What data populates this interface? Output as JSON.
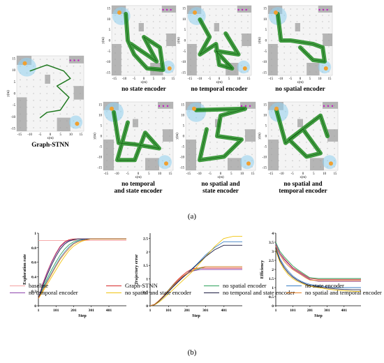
{
  "part_a": {
    "label": "(a)",
    "maps": [
      {
        "caption": [
          "Graph-STNN"
        ]
      },
      {
        "caption": [
          "no state encoder"
        ]
      },
      {
        "caption": [
          "no temporal encoder"
        ]
      },
      {
        "caption": [
          "no spatial encoder"
        ]
      },
      {
        "caption": [
          "no temporal",
          "and state encoder"
        ]
      },
      {
        "caption": [
          "no spatial and",
          "state encoder"
        ]
      },
      {
        "caption": [
          "no spatial and",
          "temporal encoder"
        ]
      }
    ],
    "x_label": "x(m)",
    "y_label": "y(m)",
    "ticks": [
      "-15",
      "-10",
      "-5",
      "0",
      "5",
      "10",
      "15"
    ],
    "y_ticks": [
      "15",
      "10",
      "5",
      "0",
      "-5",
      "-10",
      "-15"
    ]
  },
  "part_b": {
    "label": "(b)"
  },
  "colors": {
    "baseline": "#f4a0a0",
    "Graph-STNN": "#d62728",
    "no spatial encoder": "#2ca05a",
    "no state encoder": "#3a7fc4",
    "no temporal encoder": "#8e44ad",
    "no spatial and state encoder": "#f1c40f",
    "no temporal and state encoder": "#1a1a40",
    "no spatial and temporal encoder": "#e67e22",
    "map_green": "#1f8a1f",
    "map_blue": "#8fd0ee",
    "map_gray": "#9a9a9a",
    "map_orange": "#f0a030",
    "map_magenta": "#c020c0"
  },
  "chart_data": [
    {
      "type": "line",
      "ylabel": "Exploration rate",
      "xlabel": "Step",
      "x_ticks": [
        1,
        101,
        201,
        301,
        401
      ],
      "y_ticks": [
        0,
        0.2,
        0.4,
        0.6,
        0.8,
        1
      ],
      "xlim": [
        1,
        500
      ],
      "ylim": [
        0,
        1
      ],
      "x": [
        1,
        25,
        50,
        75,
        100,
        125,
        150,
        175,
        200,
        225,
        250,
        275,
        300,
        350,
        400,
        450,
        500
      ],
      "series": [
        {
          "name": "baseline",
          "values": [
            0.9,
            0.9,
            0.9,
            0.9,
            0.9,
            0.9,
            0.9,
            0.9,
            0.9,
            0.9,
            0.9,
            0.9,
            0.9,
            0.9,
            0.9,
            0.9,
            0.9
          ]
        },
        {
          "name": "Graph-STNN",
          "values": [
            0.1,
            0.3,
            0.46,
            0.6,
            0.72,
            0.82,
            0.88,
            0.91,
            0.92,
            0.92,
            0.92,
            0.92,
            0.92,
            0.92,
            0.92,
            0.92,
            0.92
          ]
        },
        {
          "name": "no spatial encoder",
          "values": [
            0.1,
            0.24,
            0.37,
            0.49,
            0.6,
            0.7,
            0.78,
            0.84,
            0.88,
            0.9,
            0.91,
            0.92,
            0.92,
            0.92,
            0.92,
            0.92,
            0.92
          ]
        },
        {
          "name": "no state encoder",
          "values": [
            0.1,
            0.22,
            0.34,
            0.45,
            0.56,
            0.66,
            0.74,
            0.81,
            0.86,
            0.89,
            0.91,
            0.92,
            0.92,
            0.92,
            0.92,
            0.92,
            0.92
          ]
        },
        {
          "name": "no temporal encoder",
          "values": [
            0.1,
            0.29,
            0.45,
            0.59,
            0.71,
            0.81,
            0.87,
            0.9,
            0.91,
            0.92,
            0.92,
            0.92,
            0.92,
            0.92,
            0.92,
            0.92,
            0.92
          ]
        },
        {
          "name": "no spatial and state encoder",
          "values": [
            0.1,
            0.19,
            0.29,
            0.39,
            0.49,
            0.59,
            0.68,
            0.76,
            0.82,
            0.86,
            0.89,
            0.91,
            0.92,
            0.92,
            0.92,
            0.92,
            0.92
          ]
        },
        {
          "name": "no temporal and state encoder",
          "values": [
            0.1,
            0.27,
            0.42,
            0.56,
            0.68,
            0.78,
            0.85,
            0.89,
            0.91,
            0.92,
            0.92,
            0.92,
            0.92,
            0.92,
            0.92,
            0.92,
            0.92
          ]
        },
        {
          "name": "no spatial and temporal encoder",
          "values": [
            0.1,
            0.21,
            0.32,
            0.43,
            0.54,
            0.64,
            0.72,
            0.79,
            0.85,
            0.88,
            0.9,
            0.91,
            0.92,
            0.92,
            0.92,
            0.92,
            0.92
          ]
        }
      ]
    },
    {
      "type": "line",
      "ylabel": "Trajectory error",
      "xlabel": "Step",
      "x_ticks": [
        1,
        101,
        201,
        301,
        401
      ],
      "y_ticks": [
        0,
        0.5,
        1,
        1.5,
        2,
        2.5
      ],
      "xlim": [
        1,
        500
      ],
      "ylim": [
        0,
        2.7
      ],
      "x": [
        1,
        25,
        50,
        75,
        100,
        125,
        150,
        175,
        200,
        225,
        250,
        275,
        300,
        350,
        400,
        450,
        500
      ],
      "series": [
        {
          "name": "Graph-STNN",
          "values": [
            0,
            0.05,
            0.2,
            0.38,
            0.58,
            0.78,
            0.96,
            1.12,
            1.26,
            1.36,
            1.4,
            1.4,
            1.4,
            1.4,
            1.4,
            1.4,
            1.4
          ]
        },
        {
          "name": "no spatial encoder",
          "values": [
            0,
            0.05,
            0.2,
            0.38,
            0.58,
            0.76,
            0.92,
            1.06,
            1.18,
            1.28,
            1.34,
            1.4,
            1.45,
            1.45,
            1.45,
            1.45,
            1.45
          ]
        },
        {
          "name": "no state encoder",
          "values": [
            0,
            0.04,
            0.18,
            0.34,
            0.52,
            0.7,
            0.88,
            1.04,
            1.2,
            1.36,
            1.52,
            1.7,
            1.88,
            2.16,
            2.38,
            2.38,
            2.38
          ]
        },
        {
          "name": "no temporal encoder",
          "values": [
            0,
            0.05,
            0.2,
            0.37,
            0.56,
            0.74,
            0.9,
            1.05,
            1.18,
            1.28,
            1.32,
            1.35,
            1.35,
            1.35,
            1.35,
            1.35,
            1.35
          ]
        },
        {
          "name": "no spatial and state encoder",
          "values": [
            0,
            0.03,
            0.14,
            0.28,
            0.44,
            0.6,
            0.76,
            0.92,
            1.08,
            1.24,
            1.42,
            1.62,
            1.82,
            2.2,
            2.5,
            2.58,
            2.58
          ]
        },
        {
          "name": "no temporal and state encoder",
          "values": [
            0,
            0.04,
            0.18,
            0.34,
            0.52,
            0.7,
            0.87,
            1.03,
            1.18,
            1.34,
            1.5,
            1.66,
            1.82,
            2.08,
            2.25,
            2.25,
            2.25
          ]
        },
        {
          "name": "no spatial and temporal encoder",
          "values": [
            0,
            0.05,
            0.2,
            0.38,
            0.56,
            0.74,
            0.92,
            1.08,
            1.2,
            1.3,
            1.38,
            1.42,
            1.45,
            1.45,
            1.45,
            1.45,
            1.45
          ]
        }
      ]
    },
    {
      "type": "line",
      "ylabel": "Efficiency",
      "xlabel": "Step",
      "x_ticks": [
        1,
        101,
        201,
        301,
        401
      ],
      "y_ticks": [
        0,
        0.5,
        1,
        1.5,
        2,
        2.5,
        3,
        3.5,
        4
      ],
      "xlim": [
        1,
        500
      ],
      "ylim": [
        0,
        4
      ],
      "x": [
        1,
        10,
        25,
        50,
        75,
        100,
        125,
        150,
        175,
        200,
        250,
        300,
        350,
        400,
        450,
        500
      ],
      "series": [
        {
          "name": "Graph-STNN",
          "values": [
            3.4,
            3.2,
            2.9,
            2.6,
            2.35,
            2.1,
            1.95,
            1.8,
            1.65,
            1.5,
            1.45,
            1.45,
            1.45,
            1.45,
            1.45,
            1.45
          ]
        },
        {
          "name": "no spatial encoder",
          "values": [
            3.5,
            3.3,
            3.0,
            2.7,
            2.45,
            2.2,
            2.02,
            1.86,
            1.7,
            1.55,
            1.5,
            1.5,
            1.5,
            1.5,
            1.5,
            1.5
          ]
        },
        {
          "name": "no state encoder",
          "values": [
            3.3,
            3.0,
            2.6,
            2.2,
            1.9,
            1.65,
            1.48,
            1.35,
            1.25,
            1.18,
            1.1,
            1.05,
            1.0,
            1.0,
            1.0,
            1.0
          ]
        },
        {
          "name": "no temporal encoder",
          "values": [
            3.4,
            3.2,
            2.88,
            2.55,
            2.3,
            2.05,
            1.9,
            1.75,
            1.6,
            1.45,
            1.35,
            1.35,
            1.35,
            1.35,
            1.35,
            1.35
          ]
        },
        {
          "name": "no spatial and state encoder",
          "values": [
            3.1,
            2.8,
            2.4,
            2.0,
            1.7,
            1.5,
            1.35,
            1.25,
            1.15,
            1.08,
            1.0,
            0.92,
            0.87,
            0.83,
            0.8,
            0.78
          ]
        },
        {
          "name": "no temporal and state encoder",
          "values": [
            3.2,
            2.9,
            2.5,
            2.1,
            1.8,
            1.58,
            1.42,
            1.3,
            1.2,
            1.12,
            1.05,
            0.98,
            0.93,
            0.9,
            0.88,
            0.88
          ]
        },
        {
          "name": "no spatial and temporal encoder",
          "values": [
            3.3,
            3.1,
            2.8,
            2.45,
            2.2,
            2.0,
            1.85,
            1.7,
            1.55,
            1.42,
            1.38,
            1.38,
            1.38,
            1.38,
            1.38,
            1.38
          ]
        }
      ]
    }
  ],
  "legend": [
    "baseline",
    "Graph-STNN",
    "no spatial encoder",
    "no state encoder",
    "no temporal encoder",
    "no spatial and state encoder",
    "no temporal and state encoder",
    "no spatial and temporal encoder"
  ]
}
